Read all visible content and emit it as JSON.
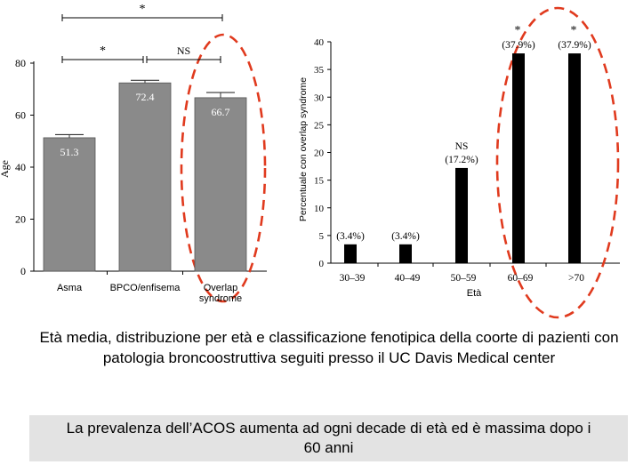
{
  "chart_data": [
    {
      "type": "bar",
      "ylabel": "Age",
      "ylim": [
        0,
        80
      ],
      "yticks": [
        "0",
        "20",
        "40",
        "60",
        "80"
      ],
      "categories": [
        "Asma",
        "BPCO/enfisema",
        "Overlap syndrome"
      ],
      "values": [
        51.3,
        72.4,
        66.7
      ],
      "value_labels": [
        "51.3",
        "72.4",
        "66.7"
      ],
      "errors": [
        1.2,
        1.0,
        2.0
      ],
      "bar_color": "#8a8a8a",
      "significance": [
        {
          "from": 0,
          "to": 2,
          "label": "*"
        },
        {
          "from": 0,
          "to": 1,
          "label": "*"
        },
        {
          "from": 1,
          "to": 2,
          "label": "NS"
        }
      ],
      "highlight": {
        "category": "Overlap syndrome",
        "color": "#e03a1e"
      }
    },
    {
      "type": "bar",
      "xlabel": "Età",
      "ylabel": "Percentuale con overlap syndrome",
      "ylim": [
        0,
        40
      ],
      "yticks": [
        "0",
        "5",
        "10",
        "15",
        "20",
        "25",
        "30",
        "35",
        "40"
      ],
      "categories": [
        "30–39",
        "40–49",
        "50–59",
        "60–69",
        ">70"
      ],
      "values": [
        3.4,
        3.4,
        17.2,
        37.9,
        37.9
      ],
      "value_labels": [
        "(3.4%)",
        "(3.4%)",
        "(17.2%)",
        "(37.9%)",
        "(37.9%)"
      ],
      "significance": [
        "",
        "",
        "NS",
        "*",
        "*"
      ],
      "bar_color": "#000000",
      "highlight": {
        "categories": [
          "60–69",
          ">70"
        ],
        "color": "#e03a1e"
      }
    }
  ],
  "caption": "Età media, distribuzione per età e classificazione fenotipica della coorte di pazienti con patologia broncoostruttiva seguiti presso il UC Davis Medical center",
  "note": "La prevalenza dell’ACOS aumenta ad ogni decade di età ed è massima dopo i 60 anni"
}
